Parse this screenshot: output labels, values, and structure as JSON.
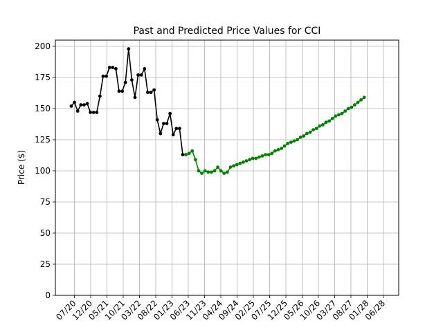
{
  "chart_data": {
    "type": "line",
    "title": "Past and Predicted Price Values for CCI",
    "xlabel": "",
    "ylabel": "Price ($)",
    "ylim": [
      0,
      205
    ],
    "yticks": [
      0,
      25,
      50,
      75,
      100,
      125,
      150,
      175,
      200
    ],
    "xtick_labels": [
      "07/20",
      "12/20",
      "05/21",
      "10/21",
      "03/22",
      "08/22",
      "01/23",
      "06/23",
      "11/23",
      "04/24",
      "09/24",
      "02/25",
      "07/25",
      "12/25",
      "05/26",
      "10/26",
      "03/27",
      "08/27",
      "01/28",
      "06/28"
    ],
    "grid": true,
    "series": [
      {
        "color": "#000000",
        "values": [
          152,
          155,
          148,
          153,
          153,
          154,
          147,
          147,
          147,
          160,
          176,
          176,
          183,
          183,
          182,
          164,
          164,
          171,
          198,
          173,
          159,
          177,
          177,
          182,
          163,
          163,
          165,
          141,
          130,
          138,
          138,
          146,
          129,
          134,
          134,
          113,
          113
        ]
      },
      {
        "color": "#008000",
        "values": [
          113,
          114,
          116,
          109,
          100,
          98,
          100,
          99,
          99,
          100,
          103,
          100,
          98,
          99,
          103,
          104,
          105,
          106,
          107,
          108,
          109,
          110,
          110,
          111,
          112,
          113,
          113,
          114,
          116,
          117,
          118,
          120,
          122,
          123,
          124,
          125,
          127,
          128,
          130,
          131,
          133,
          134,
          136,
          137,
          139,
          140,
          142,
          144,
          145,
          146,
          148,
          150,
          151,
          153,
          155,
          157,
          159
        ]
      }
    ]
  }
}
